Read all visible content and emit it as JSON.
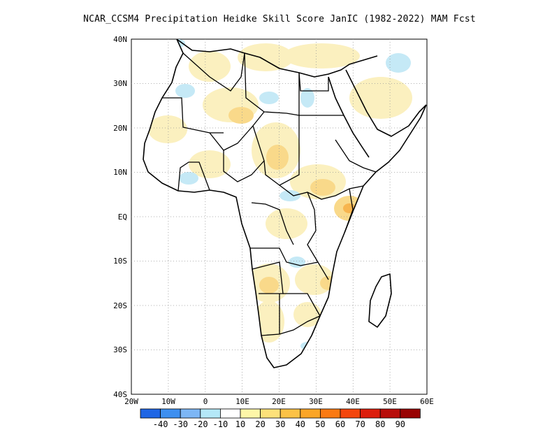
{
  "title": "NCAR_CCSM4  Precipitation Heidke Skill Score JanIC (1982-2022) MAM Fcst",
  "map": {
    "lat_labels": [
      "40N",
      "30N",
      "20N",
      "10N",
      "EQ",
      "10S",
      "20S",
      "30S",
      "40S"
    ],
    "lon_labels": [
      "20W",
      "10W",
      "0",
      "10E",
      "20E",
      "30E",
      "40E",
      "50E",
      "60E"
    ],
    "lon_range": [
      -20,
      60
    ],
    "lat_range": [
      -40,
      40
    ],
    "gridlines": "dotted"
  },
  "colorbar": {
    "labels": [
      "-40",
      "-30",
      "-20",
      "-10",
      "10",
      "20",
      "30",
      "40",
      "50",
      "60",
      "70",
      "80",
      "90"
    ],
    "colors": [
      "#1f66e5",
      "#3d8ff0",
      "#7db6f5",
      "#b4e8f8",
      "#ffffff",
      "#fdf6a8",
      "#fde17a",
      "#fcc246",
      "#fba527",
      "#fa7a13",
      "#f4460c",
      "#dc1e0c",
      "#b80d0a",
      "#980202"
    ]
  },
  "shading": {
    "warm_light": "#fbf0bf",
    "warm_mid": "#f9d98a",
    "warm_strong": "#f7b54f",
    "cool_light": "#c5e9f6",
    "cool_mid": "#a8d6ef"
  }
}
